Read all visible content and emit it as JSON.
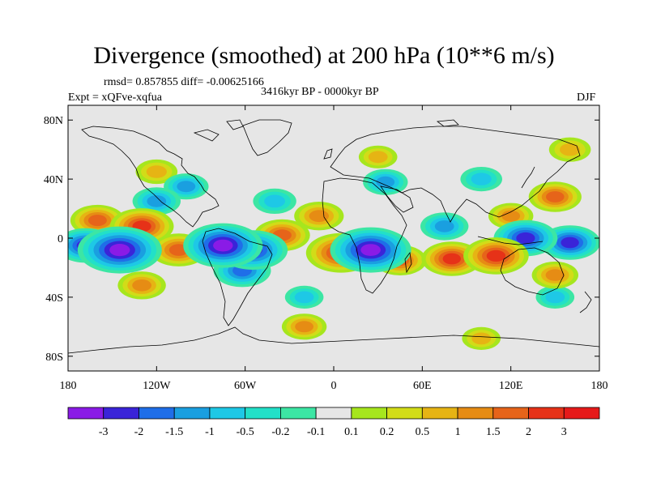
{
  "chart_data": {
    "type": "heatmap",
    "title": "Divergence (smoothed) at 200 hPa (10**6 m/s)",
    "stats_text": "rmsd= 0.857855 diff= -0.00625166",
    "period": "3416kyr BP - 0000kyr BP",
    "experiment": "Expt = xQFve-xqfua",
    "season": "DJF",
    "x_ticks": [
      "180",
      "120W",
      "60W",
      "0",
      "60E",
      "120E",
      "180"
    ],
    "x_tick_values": [
      -180,
      -120,
      -60,
      0,
      60,
      120,
      180
    ],
    "y_ticks": [
      "80N",
      "40N",
      "0",
      "40S",
      "80S"
    ],
    "y_tick_values": [
      80,
      40,
      0,
      -40,
      -80
    ],
    "xlim": [
      -180,
      180
    ],
    "ylim": [
      -90,
      90
    ],
    "colorbar_labels": [
      "-3",
      "-2",
      "-1.5",
      "-1",
      "-0.5",
      "-0.2",
      "-0.1",
      "0.1",
      "0.2",
      "0.5",
      "1",
      "1.5",
      "2",
      "3"
    ],
    "levels": [
      -3,
      -2,
      -1.5,
      -1,
      -0.5,
      -0.2,
      -0.1,
      0.1,
      0.2,
      0.5,
      1,
      1.5,
      2,
      3
    ],
    "colors": [
      "#8a1be6",
      "#3a24d8",
      "#1f6ee8",
      "#1a9fe0",
      "#1ec8e6",
      "#22e0c8",
      "#3ce6a4",
      "#e6e6e6",
      "#a6e61e",
      "#d2dc18",
      "#e6b414",
      "#e68c14",
      "#e6641a",
      "#e63218",
      "#e61a1a"
    ],
    "features": [
      {
        "lon": -145,
        "lat": -8,
        "value": -3.5
      },
      {
        "lon": -168,
        "lat": -5,
        "value": -2.0
      },
      {
        "lon": -75,
        "lat": -5,
        "value": -3.2
      },
      {
        "lon": -55,
        "lat": -8,
        "value": -2.6
      },
      {
        "lon": -62,
        "lat": -22,
        "value": -1.8
      },
      {
        "lon": -100,
        "lat": 35,
        "value": -1.0
      },
      {
        "lon": -120,
        "lat": 25,
        "value": -1.2
      },
      {
        "lon": -40,
        "lat": 25,
        "value": -0.9
      },
      {
        "lon": 25,
        "lat": -8,
        "value": -3.3
      },
      {
        "lon": 35,
        "lat": 38,
        "value": -1.0
      },
      {
        "lon": 75,
        "lat": 8,
        "value": -1.2
      },
      {
        "lon": 130,
        "lat": 0,
        "value": -2.2
      },
      {
        "lon": 160,
        "lat": -3,
        "value": -2.0
      },
      {
        "lon": 100,
        "lat": 40,
        "value": -0.8
      },
      {
        "lon": 150,
        "lat": -40,
        "value": -0.6
      },
      {
        "lon": -20,
        "lat": -40,
        "value": -0.6
      },
      {
        "lon": -130,
        "lat": 8,
        "value": 2.2
      },
      {
        "lon": -160,
        "lat": 12,
        "value": 1.6
      },
      {
        "lon": -105,
        "lat": -8,
        "value": 1.8
      },
      {
        "lon": -35,
        "lat": 2,
        "value": 1.7
      },
      {
        "lon": 5,
        "lat": -10,
        "value": 2.6
      },
      {
        "lon": -10,
        "lat": 15,
        "value": 1.3
      },
      {
        "lon": 45,
        "lat": -15,
        "value": 1.5
      },
      {
        "lon": 80,
        "lat": -14,
        "value": 2.0
      },
      {
        "lon": 110,
        "lat": -12,
        "value": 2.3
      },
      {
        "lon": 150,
        "lat": 28,
        "value": 1.5
      },
      {
        "lon": 120,
        "lat": 15,
        "value": 1.0
      },
      {
        "lon": 150,
        "lat": -25,
        "value": 1.1
      },
      {
        "lon": -130,
        "lat": -32,
        "value": 1.2
      },
      {
        "lon": -120,
        "lat": 45,
        "value": 0.8
      },
      {
        "lon": 30,
        "lat": 55,
        "value": 0.6
      },
      {
        "lon": -20,
        "lat": -60,
        "value": 1.0
      },
      {
        "lon": 100,
        "lat": -68,
        "value": 0.6
      },
      {
        "lon": 160,
        "lat": 60,
        "value": 0.8
      }
    ]
  }
}
